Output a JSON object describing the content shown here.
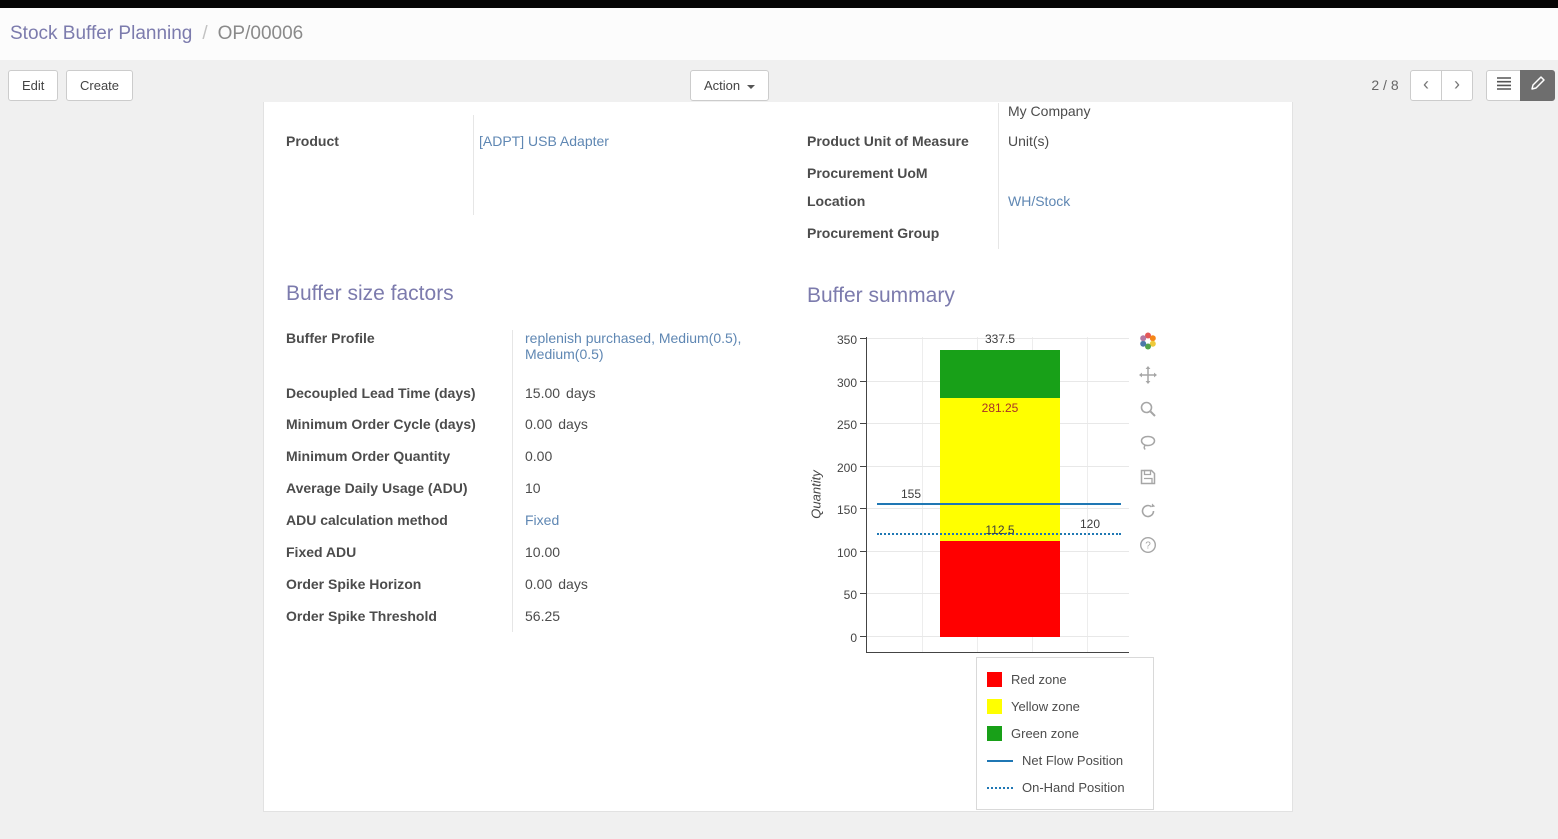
{
  "breadcrumb": {
    "parent": "Stock Buffer Planning",
    "separator": "/",
    "current": "OP/00006"
  },
  "toolbar": {
    "edit": "Edit",
    "create": "Create",
    "action": "Action",
    "pager": "2 / 8",
    "prev_glyph": "‹",
    "next_glyph": "›"
  },
  "icons": {
    "pager_prev": "chevron-left",
    "pager_next": "chevron-right",
    "view_list": "list",
    "view_form": "form",
    "action_caret": "caret-down",
    "modebar": [
      "plotly-logo",
      "pan",
      "zoom",
      "lasso",
      "save",
      "autoscale",
      "help"
    ]
  },
  "form": {
    "company_value": "My Company",
    "product": {
      "label": "Product",
      "value": "[ADPT] USB Adapter"
    },
    "right_rows": [
      {
        "label": "Product Unit of Measure",
        "value": "Unit(s)"
      },
      {
        "label": "Procurement UoM",
        "value": ""
      },
      {
        "label": "Location",
        "value": "WH/Stock"
      },
      {
        "label": "Procurement Group",
        "value": ""
      }
    ]
  },
  "buffer_factors": {
    "title": "Buffer size factors",
    "rows": [
      {
        "label": "Buffer Profile",
        "value": "replenish purchased, Medium(0.5), Medium(0.5)",
        "suffix": ""
      },
      {
        "label": "Decoupled Lead Time (days)",
        "value": "15.00",
        "suffix": "days"
      },
      {
        "label": "Minimum Order Cycle (days)",
        "value": "0.00",
        "suffix": "days"
      },
      {
        "label": "Minimum Order Quantity",
        "value": "0.00",
        "suffix": ""
      },
      {
        "label": "Average Daily Usage (ADU)",
        "value": "10",
        "suffix": ""
      },
      {
        "label": "ADU calculation method",
        "value": "Fixed",
        "suffix": ""
      },
      {
        "label": "Fixed ADU",
        "value": "10.00",
        "suffix": ""
      },
      {
        "label": "Order Spike Horizon",
        "value": "0.00",
        "suffix": "days"
      },
      {
        "label": "Order Spike Threshold",
        "value": "56.25",
        "suffix": ""
      }
    ]
  },
  "buffer_summary": {
    "title": "Buffer summary",
    "chart_data": {
      "type": "bar",
      "stacked": true,
      "title": "",
      "xlabel": "",
      "ylabel": "Quantity",
      "ylim": [
        0,
        350
      ],
      "yticks": [
        0,
        50,
        100,
        150,
        200,
        250,
        300,
        350
      ],
      "grid": true,
      "legend_position": "bottom-right",
      "zones": [
        {
          "name": "Red zone",
          "from": 0,
          "to": 112.5,
          "color": "#ff0000"
        },
        {
          "name": "Yellow zone",
          "from": 112.5,
          "to": 281.25,
          "color": "#ffff00"
        },
        {
          "name": "Green zone",
          "from": 281.25,
          "to": 337.5,
          "color": "#18a018"
        }
      ],
      "lines": [
        {
          "name": "Net Flow Position",
          "value": 155,
          "style": "solid",
          "color": "#1f77b4"
        },
        {
          "name": "On-Hand Position",
          "value": 120,
          "style": "dotted",
          "color": "#1f77b4"
        }
      ],
      "annotations": [
        {
          "text": "337.5",
          "value": 337.5,
          "align": "bar",
          "placement": "above",
          "color": "#3d3d3d"
        },
        {
          "text": "281.25",
          "value": 281.25,
          "align": "bar",
          "placement": "below",
          "color": "#a93226"
        },
        {
          "text": "155",
          "value": 155,
          "align": "left",
          "placement": "above",
          "color": "#3d3d3d"
        },
        {
          "text": "112.5",
          "value": 112.5,
          "align": "bar",
          "placement": "above",
          "color": "#3d3d3d"
        },
        {
          "text": "120",
          "value": 120,
          "align": "right",
          "placement": "above",
          "color": "#3d3d3d"
        }
      ]
    }
  }
}
